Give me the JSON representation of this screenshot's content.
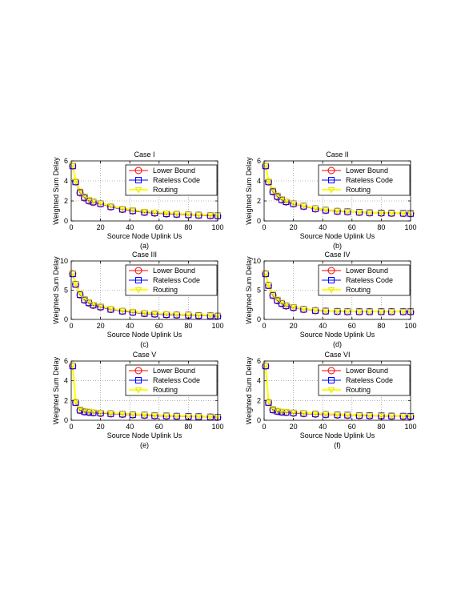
{
  "figure": {
    "legend_labels": [
      "Lower Bound",
      "Rateless Code",
      "Routing"
    ],
    "colors": {
      "lower_bound": "#ff0000",
      "rateless_code": "#0000ff",
      "routing": "#ffff00",
      "routing_marker": "#e6e600"
    }
  },
  "chart_data": [
    {
      "type": "line",
      "title": "Case I",
      "caption": "(a)",
      "xlabel": "Source Node Uplink Us",
      "ylabel": "Weighted Sum Delay",
      "xlim": [
        0,
        100
      ],
      "ylim": [
        0,
        6
      ],
      "xticks": [
        0,
        20,
        40,
        60,
        80,
        100
      ],
      "yticks": [
        0,
        2,
        4,
        6
      ],
      "grid": true,
      "legend_position": "top-right",
      "x": [
        1,
        3,
        6,
        9,
        12,
        15,
        20,
        27,
        35,
        42,
        50,
        57,
        65,
        72,
        80,
        87,
        95,
        100
      ],
      "series": [
        {
          "name": "Lower Bound",
          "marker": "circle",
          "values": [
            5.5,
            3.9,
            2.8,
            2.3,
            2.0,
            1.85,
            1.7,
            1.4,
            1.15,
            1.0,
            0.85,
            0.78,
            0.7,
            0.65,
            0.6,
            0.56,
            0.52,
            0.5
          ]
        },
        {
          "name": "Rateless Code",
          "marker": "square",
          "values": [
            5.5,
            3.9,
            2.85,
            2.35,
            2.05,
            1.9,
            1.72,
            1.42,
            1.17,
            1.02,
            0.87,
            0.8,
            0.72,
            0.67,
            0.62,
            0.58,
            0.54,
            0.52
          ]
        },
        {
          "name": "Routing",
          "marker": "triangle-down",
          "values": [
            5.6,
            4.0,
            3.0,
            2.5,
            2.15,
            1.95,
            1.78,
            1.5,
            1.25,
            1.1,
            0.95,
            0.88,
            0.8,
            0.74,
            0.68,
            0.63,
            0.6,
            0.57
          ]
        }
      ]
    },
    {
      "type": "line",
      "title": "Case II",
      "caption": "(b)",
      "xlabel": "Source Node Uplink Us",
      "ylabel": "Weighted Sum Delay",
      "xlim": [
        0,
        100
      ],
      "ylim": [
        0,
        6
      ],
      "xticks": [
        0,
        20,
        40,
        60,
        80,
        100
      ],
      "yticks": [
        0,
        2,
        4,
        6
      ],
      "grid": true,
      "legend_position": "top-right",
      "x": [
        1,
        3,
        6,
        9,
        12,
        15,
        20,
        27,
        35,
        42,
        50,
        57,
        65,
        72,
        80,
        87,
        95,
        100
      ],
      "series": [
        {
          "name": "Lower Bound",
          "marker": "circle",
          "values": [
            5.5,
            3.9,
            2.9,
            2.4,
            2.1,
            1.9,
            1.7,
            1.45,
            1.2,
            1.05,
            0.95,
            0.9,
            0.85,
            0.8,
            0.78,
            0.76,
            0.74,
            0.72
          ]
        },
        {
          "name": "Rateless Code",
          "marker": "square",
          "values": [
            5.5,
            3.9,
            2.95,
            2.45,
            2.12,
            1.92,
            1.72,
            1.47,
            1.22,
            1.07,
            0.97,
            0.92,
            0.87,
            0.82,
            0.8,
            0.78,
            0.76,
            0.74
          ]
        },
        {
          "name": "Routing",
          "marker": "triangle-down",
          "values": [
            5.6,
            4.0,
            3.1,
            2.6,
            2.25,
            2.0,
            1.78,
            1.52,
            1.28,
            1.12,
            1.02,
            0.95,
            0.9,
            0.85,
            0.82,
            0.8,
            0.78,
            0.76
          ]
        }
      ]
    },
    {
      "type": "line",
      "title": "Case III",
      "caption": "(c)",
      "xlabel": "Source Node Uplink Us",
      "ylabel": "Weighted Sum Delay",
      "xlim": [
        0,
        100
      ],
      "ylim": [
        0,
        10
      ],
      "xticks": [
        0,
        20,
        40,
        60,
        80,
        100
      ],
      "yticks": [
        0,
        5,
        10
      ],
      "grid": true,
      "legend_position": "top-right",
      "x": [
        1,
        3,
        6,
        9,
        12,
        15,
        20,
        27,
        35,
        42,
        50,
        57,
        65,
        72,
        80,
        87,
        95,
        100
      ],
      "series": [
        {
          "name": "Lower Bound",
          "marker": "circle",
          "values": [
            7.8,
            6.0,
            4.2,
            3.3,
            2.8,
            2.4,
            2.1,
            1.7,
            1.4,
            1.2,
            1.0,
            0.9,
            0.8,
            0.75,
            0.7,
            0.65,
            0.6,
            0.55
          ]
        },
        {
          "name": "Rateless Code",
          "marker": "square",
          "values": [
            7.8,
            6.0,
            4.25,
            3.35,
            2.85,
            2.45,
            2.15,
            1.72,
            1.42,
            1.22,
            1.02,
            0.92,
            0.82,
            0.77,
            0.72,
            0.67,
            0.62,
            0.57
          ]
        },
        {
          "name": "Routing",
          "marker": "triangle-down",
          "values": [
            7.9,
            6.1,
            4.5,
            3.6,
            3.05,
            2.6,
            2.3,
            1.85,
            1.55,
            1.35,
            1.15,
            1.05,
            0.95,
            0.88,
            0.82,
            0.76,
            0.7,
            0.65
          ]
        }
      ]
    },
    {
      "type": "line",
      "title": "Case IV",
      "caption": "(d)",
      "xlabel": "Source Node Uplink Us",
      "ylabel": "Weighted Sum Delay",
      "xlim": [
        0,
        100
      ],
      "ylim": [
        0,
        10
      ],
      "xticks": [
        0,
        20,
        40,
        60,
        80,
        100
      ],
      "yticks": [
        0,
        5,
        10
      ],
      "grid": true,
      "legend_position": "top-right",
      "x": [
        1,
        3,
        6,
        9,
        12,
        15,
        20,
        27,
        35,
        42,
        50,
        57,
        65,
        72,
        80,
        87,
        95,
        100
      ],
      "series": [
        {
          "name": "Lower Bound",
          "marker": "circle",
          "values": [
            7.8,
            5.8,
            4.1,
            3.2,
            2.7,
            2.3,
            2.0,
            1.7,
            1.5,
            1.4,
            1.35,
            1.3,
            1.3,
            1.3,
            1.3,
            1.3,
            1.3,
            1.3
          ]
        },
        {
          "name": "Rateless Code",
          "marker": "square",
          "values": [
            7.8,
            5.8,
            4.15,
            3.25,
            2.75,
            2.35,
            2.05,
            1.72,
            1.52,
            1.42,
            1.37,
            1.32,
            1.32,
            1.32,
            1.32,
            1.32,
            1.32,
            1.32
          ]
        },
        {
          "name": "Routing",
          "marker": "triangle-down",
          "values": [
            7.9,
            5.9,
            4.4,
            3.5,
            2.95,
            2.5,
            2.15,
            1.8,
            1.6,
            1.48,
            1.42,
            1.38,
            1.36,
            1.35,
            1.35,
            1.35,
            1.35,
            1.35
          ]
        }
      ]
    },
    {
      "type": "line",
      "title": "Case V",
      "caption": "(e)",
      "xlabel": "Source Node Uplink Us",
      "ylabel": "Weighted Sum Delay",
      "xlim": [
        0,
        100
      ],
      "ylim": [
        0,
        6
      ],
      "xticks": [
        0,
        20,
        40,
        60,
        80,
        100
      ],
      "yticks": [
        0,
        2,
        4,
        6
      ],
      "grid": true,
      "legend_position": "top-right",
      "x": [
        1,
        3,
        6,
        9,
        12,
        15,
        20,
        27,
        35,
        42,
        50,
        57,
        65,
        72,
        80,
        87,
        95,
        100
      ],
      "series": [
        {
          "name": "Lower Bound",
          "marker": "circle",
          "values": [
            5.5,
            1.8,
            1.0,
            0.85,
            0.8,
            0.75,
            0.7,
            0.65,
            0.6,
            0.55,
            0.5,
            0.45,
            0.42,
            0.4,
            0.37,
            0.35,
            0.32,
            0.3
          ]
        },
        {
          "name": "Rateless Code",
          "marker": "square",
          "values": [
            5.5,
            1.8,
            1.02,
            0.87,
            0.82,
            0.77,
            0.72,
            0.67,
            0.62,
            0.57,
            0.52,
            0.47,
            0.44,
            0.42,
            0.39,
            0.37,
            0.34,
            0.32
          ]
        },
        {
          "name": "Routing",
          "marker": "triangle-down",
          "values": [
            5.6,
            1.9,
            1.15,
            1.0,
            0.92,
            0.86,
            0.8,
            0.74,
            0.68,
            0.62,
            0.57,
            0.52,
            0.48,
            0.45,
            0.42,
            0.4,
            0.37,
            0.35
          ]
        }
      ]
    },
    {
      "type": "line",
      "title": "Case VI",
      "caption": "(f)",
      "xlabel": "Source Node Uplink Us",
      "ylabel": "Weighted Sum Delay",
      "xlim": [
        0,
        100
      ],
      "ylim": [
        0,
        6
      ],
      "xticks": [
        0,
        20,
        40,
        60,
        80,
        100
      ],
      "yticks": [
        0,
        2,
        4,
        6
      ],
      "grid": true,
      "legend_position": "top-right",
      "x": [
        1,
        3,
        6,
        9,
        12,
        15,
        20,
        27,
        35,
        42,
        50,
        57,
        65,
        72,
        80,
        87,
        95,
        100
      ],
      "series": [
        {
          "name": "Lower Bound",
          "marker": "circle",
          "values": [
            5.5,
            1.8,
            1.05,
            0.9,
            0.82,
            0.78,
            0.72,
            0.67,
            0.62,
            0.57,
            0.53,
            0.5,
            0.47,
            0.45,
            0.43,
            0.41,
            0.4,
            0.38
          ]
        },
        {
          "name": "Rateless Code",
          "marker": "square",
          "values": [
            5.5,
            1.8,
            1.07,
            0.92,
            0.84,
            0.8,
            0.74,
            0.69,
            0.64,
            0.59,
            0.55,
            0.52,
            0.49,
            0.47,
            0.45,
            0.43,
            0.42,
            0.4
          ]
        },
        {
          "name": "Routing",
          "marker": "triangle-down",
          "values": [
            5.6,
            1.9,
            1.2,
            1.02,
            0.93,
            0.88,
            0.82,
            0.76,
            0.7,
            0.65,
            0.6,
            0.56,
            0.53,
            0.5,
            0.48,
            0.46,
            0.44,
            0.42
          ]
        }
      ]
    }
  ]
}
